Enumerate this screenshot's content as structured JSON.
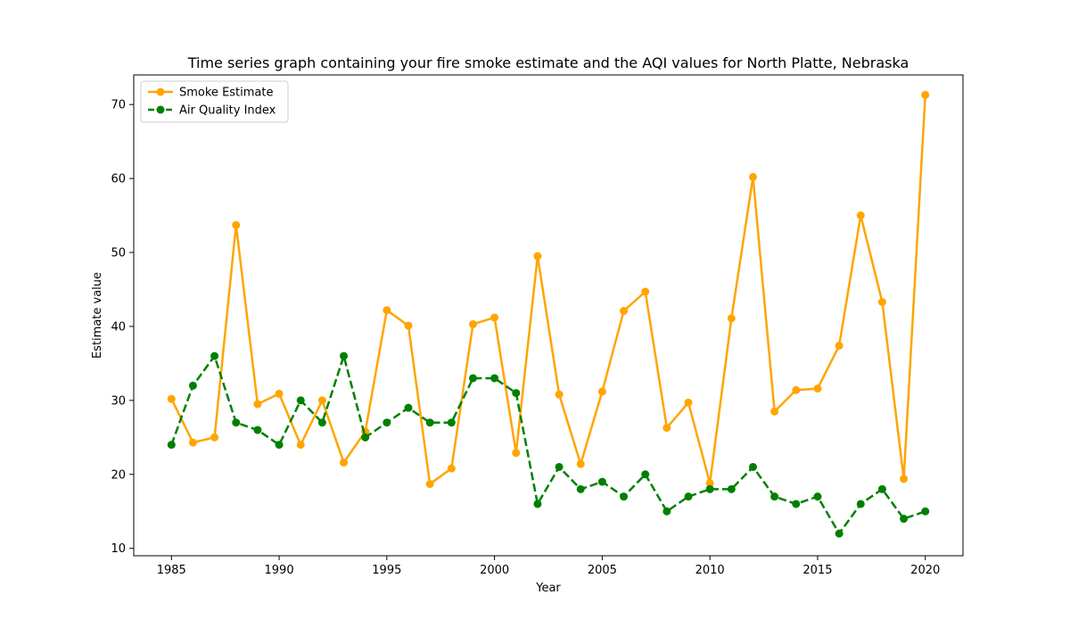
{
  "chart_data": {
    "type": "line",
    "title": "Time series graph containing your fire smoke estimate and the AQI values for North Platte, Nebraska",
    "xlabel": "Year",
    "ylabel": "Estimate value",
    "xlim": [
      1983.25,
      2021.75
    ],
    "ylim": [
      9.0,
      74.0
    ],
    "xticks": [
      1985,
      1990,
      1995,
      2000,
      2005,
      2010,
      2015,
      2020
    ],
    "yticks": [
      10,
      20,
      30,
      40,
      50,
      60,
      70
    ],
    "grid": false,
    "legend_position": "upper-left",
    "x": [
      1985,
      1986,
      1987,
      1988,
      1989,
      1990,
      1991,
      1992,
      1993,
      1994,
      1995,
      1996,
      1997,
      1998,
      1999,
      2000,
      2001,
      2002,
      2003,
      2004,
      2005,
      2006,
      2007,
      2008,
      2009,
      2010,
      2011,
      2012,
      2013,
      2014,
      2015,
      2016,
      2017,
      2018,
      2019,
      2020
    ],
    "series": [
      {
        "name": "Smoke Estimate",
        "color": "#ffa500",
        "line_style": "solid",
        "marker": "circle",
        "values": [
          30.2,
          24.3,
          25.0,
          53.7,
          29.5,
          30.9,
          24.0,
          30.0,
          21.6,
          25.8,
          42.2,
          40.1,
          18.7,
          20.8,
          40.3,
          41.2,
          22.9,
          49.5,
          30.8,
          21.4,
          31.2,
          42.1,
          44.7,
          26.3,
          29.7,
          18.8,
          41.1,
          60.2,
          28.5,
          31.4,
          31.6,
          37.4,
          55.0,
          43.3,
          19.4,
          71.3
        ]
      },
      {
        "name": "Air Quality Index",
        "color": "#008000",
        "line_style": "dashed",
        "marker": "circle",
        "values": [
          24,
          32,
          36,
          27,
          26,
          24,
          30,
          27,
          36,
          25,
          27,
          29,
          27,
          27,
          33,
          33,
          31,
          16,
          21,
          18,
          19,
          17,
          20,
          15,
          17,
          18,
          18,
          21,
          17,
          16,
          17,
          12,
          16,
          18,
          14,
          15
        ]
      }
    ]
  }
}
